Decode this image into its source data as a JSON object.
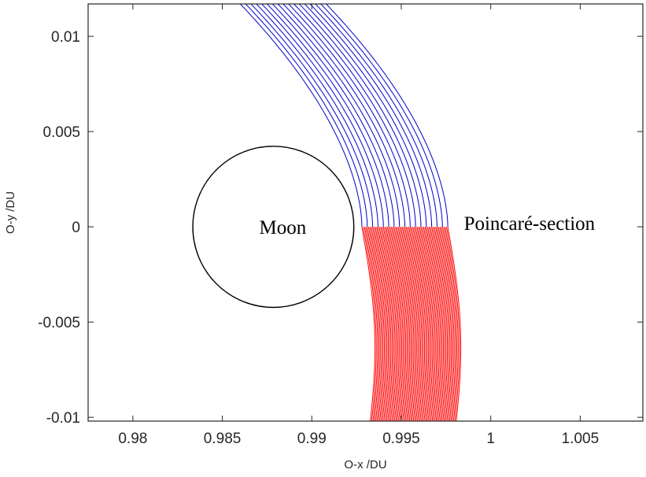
{
  "chart_data": {
    "type": "line",
    "xlabel": "O-x /DU",
    "ylabel": "O-y /DU",
    "xlim": [
      0.9775,
      1.0085
    ],
    "ylim": [
      -0.0102,
      0.0117
    ],
    "x_ticks": [
      0.98,
      0.985,
      0.99,
      0.995,
      1,
      1.005
    ],
    "x_tick_labels": [
      "0.98",
      "0.985",
      "0.99",
      "0.995",
      "1",
      "1.005"
    ],
    "y_ticks": [
      0.01,
      0.005,
      0,
      -0.005,
      -0.01
    ],
    "y_tick_labels": [
      "0.01",
      "0.005",
      "0",
      "-0.005",
      "-0.01"
    ],
    "grid": false,
    "moon": {
      "center_x": 0.98785,
      "center_y": 0.0,
      "radius": 0.0045,
      "label": "Moon"
    },
    "poincare_section": {
      "y": 0.0,
      "label": "Poincaré-section"
    },
    "series": [
      {
        "color": "#0000cc",
        "start_x": [
          0.9928,
          0.9931,
          0.9934,
          0.9937,
          0.994,
          0.9943,
          0.9946,
          0.9949,
          0.9952,
          0.9955,
          0.9958,
          0.9961,
          0.9964,
          0.9967,
          0.997,
          0.9973,
          0.9976
        ],
        "curve_end_y": 0.0117,
        "curve_end_dx": -0.0068,
        "curve_shape_power": 1.75
      },
      {
        "color": "#ff0000",
        "start_x": [
          0.9928,
          0.9931,
          0.9934,
          0.9937,
          0.994,
          0.9943,
          0.9946,
          0.9949,
          0.9952,
          0.9955,
          0.9958,
          0.9961,
          0.9964,
          0.9967,
          0.997,
          0.9973,
          0.9976
        ],
        "curve_end_y": -0.0102,
        "curve_end_dx": 0.0003,
        "curve_bulge_dx": 0.00055
      }
    ]
  }
}
